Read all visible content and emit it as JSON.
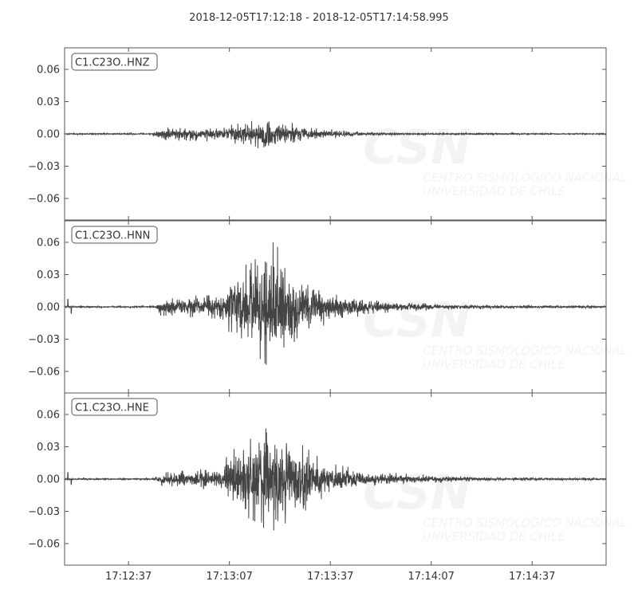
{
  "chart_data": {
    "type": "line",
    "title": "2018-12-05T17:12:18  -  2018-12-05T17:14:58.995",
    "x_range": [
      "17:12:18",
      "17:14:58.995"
    ],
    "x_ticks": [
      "17:12:37",
      "17:13:07",
      "17:13:37",
      "17:14:07",
      "17:14:37"
    ],
    "y_ticks": [
      0.06,
      0.03,
      0.0,
      -0.03,
      -0.06
    ],
    "y_tick_labels": [
      "0.06",
      "0.03",
      "0.00",
      "−0.03",
      "−0.06"
    ],
    "ylim": [
      -0.08,
      0.08
    ],
    "grid": false,
    "line_color": "#444444",
    "series": [
      {
        "name": "C1.C23O..HNZ",
        "envelope": [
          [
            "17:12:18",
            0.0008
          ],
          [
            "17:12:44",
            0.0008
          ],
          [
            "17:12:46",
            0.006
          ],
          [
            "17:13:05",
            0.007
          ],
          [
            "17:13:12",
            0.011
          ],
          [
            "17:13:18",
            0.015
          ],
          [
            "17:13:26",
            0.01
          ],
          [
            "17:13:35",
            0.005
          ],
          [
            "17:13:45",
            0.002
          ],
          [
            "17:14:00",
            0.001
          ],
          [
            "17:14:58",
            0.0006
          ]
        ]
      },
      {
        "name": "C1.C23O..HNN",
        "envelope": [
          [
            "17:12:18",
            0.0008
          ],
          [
            "17:12:45",
            0.0008
          ],
          [
            "17:12:47",
            0.01
          ],
          [
            "17:13:05",
            0.011
          ],
          [
            "17:13:07",
            0.03
          ],
          [
            "17:13:15",
            0.045
          ],
          [
            "17:13:20",
            0.06
          ],
          [
            "17:13:28",
            0.035
          ],
          [
            "17:13:36",
            0.015
          ],
          [
            "17:13:50",
            0.006
          ],
          [
            "17:14:10",
            0.003
          ],
          [
            "17:14:30",
            0.0015
          ],
          [
            "17:14:58",
            0.001
          ]
        ],
        "spikes": [
          [
            "17:12:19",
            0.007
          ],
          [
            "17:12:20",
            -0.006
          ]
        ]
      },
      {
        "name": "C1.C23O..HNE",
        "envelope": [
          [
            "17:12:18",
            0.0008
          ],
          [
            "17:12:44",
            0.0008
          ],
          [
            "17:12:47",
            0.006
          ],
          [
            "17:13:05",
            0.011
          ],
          [
            "17:13:07",
            0.028
          ],
          [
            "17:13:15",
            0.04
          ],
          [
            "17:13:19",
            0.05
          ],
          [
            "17:13:28",
            0.033
          ],
          [
            "17:13:36",
            0.015
          ],
          [
            "17:13:50",
            0.007
          ],
          [
            "17:14:10",
            0.003
          ],
          [
            "17:14:30",
            0.0015
          ],
          [
            "17:14:58",
            0.001
          ]
        ],
        "spikes": [
          [
            "17:12:19",
            0.006
          ],
          [
            "17:12:20",
            -0.005
          ]
        ]
      }
    ]
  },
  "watermark": {
    "logo": "CSN",
    "line1": "CENTRO SISMOLÓGICO NACIONAL",
    "line2": "UNIVERSIDAD DE CHILE"
  }
}
